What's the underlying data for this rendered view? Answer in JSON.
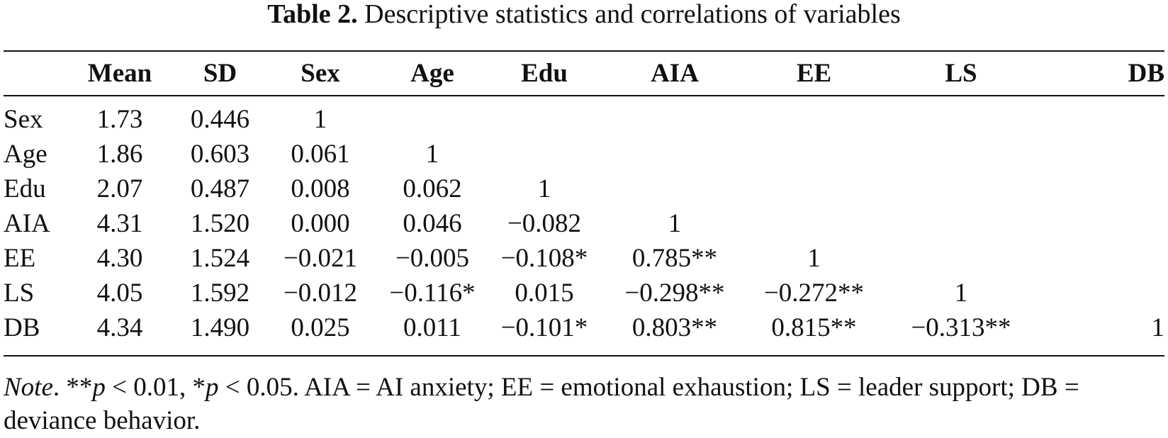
{
  "table": {
    "label": "Table 2.",
    "caption": "Descriptive statistics and correlations of variables",
    "columns": [
      "",
      "Mean",
      "SD",
      "Sex",
      "Age",
      "Edu",
      "AIA",
      "EE",
      "LS",
      "DB"
    ],
    "rows": [
      {
        "label": "Sex",
        "mean": "1.73",
        "sd": "0.446",
        "sex": "1",
        "age": "",
        "edu": "",
        "aia": "",
        "ee": "",
        "ls": "",
        "db": ""
      },
      {
        "label": "Age",
        "mean": "1.86",
        "sd": "0.603",
        "sex": "0.061",
        "age": "1",
        "edu": "",
        "aia": "",
        "ee": "",
        "ls": "",
        "db": ""
      },
      {
        "label": "Edu",
        "mean": "2.07",
        "sd": "0.487",
        "sex": "0.008",
        "age": "0.062",
        "edu": "1",
        "aia": "",
        "ee": "",
        "ls": "",
        "db": ""
      },
      {
        "label": "AIA",
        "mean": "4.31",
        "sd": "1.520",
        "sex": "0.000",
        "age": "0.046",
        "edu": "−0.082",
        "aia": "1",
        "ee": "",
        "ls": "",
        "db": ""
      },
      {
        "label": "EE",
        "mean": "4.30",
        "sd": "1.524",
        "sex": "−0.021",
        "age": "−0.005",
        "edu": "−0.108*",
        "aia": "0.785**",
        "ee": "1",
        "ls": "",
        "db": ""
      },
      {
        "label": "LS",
        "mean": "4.05",
        "sd": "1.592",
        "sex": "−0.012",
        "age": "−0.116*",
        "edu": "0.015",
        "aia": "−0.298**",
        "ee": "−0.272**",
        "ls": "1",
        "db": ""
      },
      {
        "label": "DB",
        "mean": "4.34",
        "sd": "1.490",
        "sex": "0.025",
        "age": "0.011",
        "edu": "−0.101*",
        "aia": "0.803**",
        "ee": "0.815**",
        "ls": "−0.313**",
        "db": "1"
      }
    ]
  },
  "note": {
    "label": "Note",
    "sig_a_prefix": "**",
    "sig_a_var": "p",
    "sig_a_rest": " < 0.01, ",
    "sig_b_prefix": "*",
    "sig_b_var": "p",
    "sig_b_rest": " < 0.05. AIA = AI anxiety; EE = emotional exhaustion; LS = leader support; DB = deviance behavior."
  }
}
